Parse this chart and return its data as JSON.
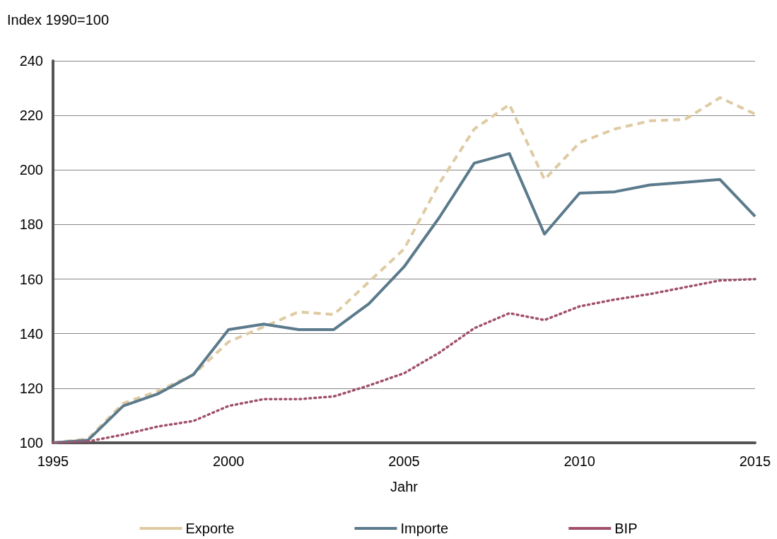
{
  "chart_data": {
    "type": "line",
    "ylabel": "Index 1990=100",
    "xlabel": "Jahr",
    "x": [
      1995,
      1996,
      1997,
      1998,
      1999,
      2000,
      2001,
      2002,
      2003,
      2004,
      2005,
      2006,
      2007,
      2008,
      2009,
      2010,
      2011,
      2012,
      2013,
      2014,
      2015
    ],
    "xlim": [
      1995,
      2015
    ],
    "xticks": [
      1995,
      2000,
      2005,
      2010,
      2015
    ],
    "ylim": [
      100,
      240
    ],
    "yticks": [
      100,
      120,
      140,
      160,
      180,
      200,
      220,
      240
    ],
    "grid": "y",
    "legend": "bottom",
    "marker": "none",
    "series": [
      {
        "name": "Exporte",
        "color": "#dfcba3",
        "line_style": "dashed",
        "values": [
          100,
          101.5,
          114.5,
          119,
          125,
          137,
          142.5,
          148,
          147,
          159,
          171,
          195,
          215,
          224,
          196.5,
          210,
          215,
          218,
          218.5,
          226.5,
          220.5
        ]
      },
      {
        "name": "Importe",
        "color": "#5b7a8c",
        "line_style": "solid",
        "values": [
          100,
          101,
          113.5,
          118,
          125,
          141.5,
          143.5,
          141.5,
          141.5,
          151,
          164.5,
          182.5,
          202.5,
          206,
          176.5,
          191.5,
          192,
          194.5,
          195.5,
          196.5,
          183
        ]
      },
      {
        "name": "BIP",
        "color": "#a0506a",
        "line_style": "dotted",
        "values": [
          100,
          100.5,
          103,
          106,
          108,
          113.5,
          116,
          116,
          117,
          121,
          125.5,
          133,
          142,
          147.5,
          145,
          150,
          152.5,
          154.5,
          157,
          159.5,
          160
        ]
      }
    ]
  }
}
